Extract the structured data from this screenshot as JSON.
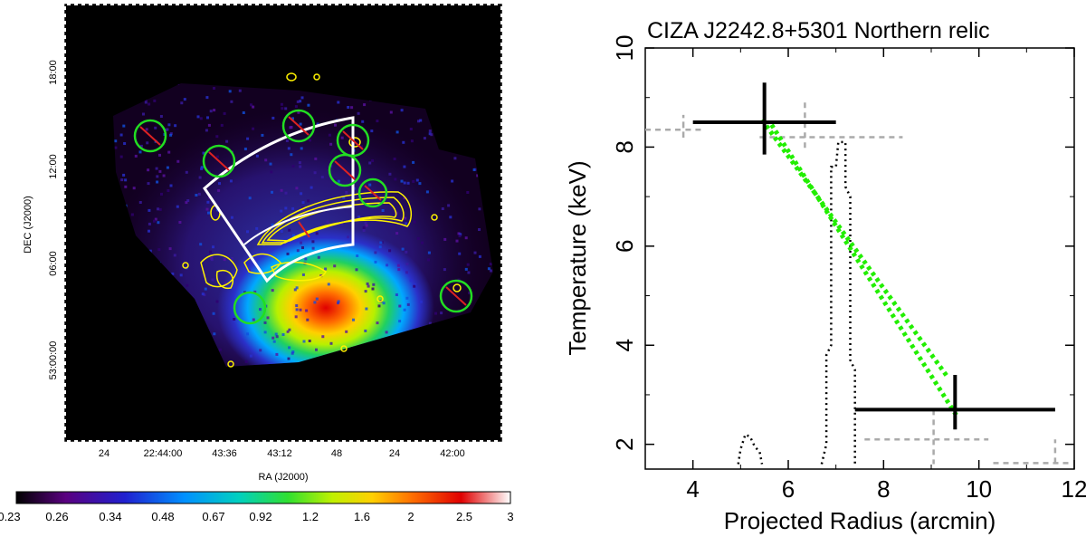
{
  "chart_data": [
    {
      "type": "heatmap",
      "description_label": "X-ray image with radio contours",
      "x_axis": {
        "label": "RA (J2000)",
        "ticks": [
          "24",
          "22:44:00",
          "43:36",
          "43:12",
          "48",
          "24",
          "42:00"
        ]
      },
      "y_axis": {
        "label": "DEC (J2000)",
        "ticks": [
          "18:00",
          "12:00",
          "06:00",
          "53:00:00"
        ]
      },
      "colorbar": {
        "ticks": [
          "0.23",
          "0.26",
          "0.34",
          "0.48",
          "0.67",
          "0.92",
          "1.2",
          "1.6",
          "2",
          "2.5",
          "3"
        ],
        "colors": [
          "#000000",
          "#5a0080",
          "#2020d0",
          "#0090ff",
          "#00d0c0",
          "#30e030",
          "#c0f000",
          "#ffd000",
          "#ff7000",
          "#e00000",
          "#ffffff"
        ]
      },
      "contour_color": "#fff200",
      "region_circle_color": "#22dd22",
      "region_slash_color": "#dd2222",
      "sector_color": "#ffffff"
    },
    {
      "type": "line",
      "title": "CIZA J2242.8+5301 Northern relic",
      "xlabel": "Projected Radius (arcmin)",
      "ylabel": "Temperature (keV)",
      "xlim": [
        3,
        12
      ],
      "ylim": [
        1.5,
        10
      ],
      "xticks": [
        4,
        6,
        8,
        10,
        12
      ],
      "yticks": [
        2,
        4,
        6,
        8,
        10
      ],
      "xtick_labels": [
        "4",
        "6",
        "8",
        "10",
        "12"
      ],
      "ytick_labels": [
        "2",
        "4",
        "6",
        "8",
        "10"
      ],
      "measurements": [
        {
          "name": "inner bin",
          "x": 5.5,
          "x_err": [
            4.0,
            7.0
          ],
          "y": 8.5,
          "y_err": [
            7.85,
            9.3
          ],
          "color": "#000000"
        },
        {
          "name": "outer bin",
          "x": 9.5,
          "x_err": [
            7.4,
            11.6
          ],
          "y": 2.7,
          "y_err": [
            2.3,
            3.4
          ],
          "color": "#000000"
        }
      ],
      "grey_dashed_steps": [
        [
          [
            3.0,
            8.35
          ],
          [
            3.8,
            8.35
          ],
          [
            3.8,
            8.65
          ],
          [
            3.8,
            8.15
          ],
          [
            3.8,
            8.35
          ],
          [
            4.2,
            8.35
          ]
        ],
        [
          [
            5.4,
            8.2
          ],
          [
            8.4,
            8.2
          ]
        ],
        [
          [
            6.35,
            8.9
          ],
          [
            6.35,
            8.2
          ],
          [
            6.35,
            7.9
          ]
        ],
        [
          [
            7.6,
            2.1
          ],
          [
            10.2,
            2.1
          ]
        ],
        [
          [
            9.05,
            2.7
          ],
          [
            9.05,
            1.6
          ]
        ],
        [
          [
            10.3,
            1.62
          ],
          [
            11.9,
            1.62
          ]
        ],
        [
          [
            11.6,
            1.62
          ],
          [
            11.6,
            2.1
          ]
        ]
      ],
      "black_dotted_profile": [
        [
          [
            4.95,
            1.6
          ],
          [
            5.0,
            1.9
          ],
          [
            5.1,
            2.2
          ],
          [
            5.2,
            2.15
          ],
          [
            5.3,
            1.95
          ],
          [
            5.4,
            1.85
          ],
          [
            5.45,
            1.6
          ]
        ],
        [
          [
            6.7,
            1.6
          ],
          [
            6.8,
            2.0
          ],
          [
            6.8,
            3.8
          ],
          [
            6.9,
            4.0
          ],
          [
            6.9,
            7.6
          ],
          [
            7.0,
            7.6
          ],
          [
            7.05,
            8.1
          ],
          [
            7.2,
            8.1
          ],
          [
            7.2,
            7.2
          ],
          [
            7.3,
            7.0
          ],
          [
            7.3,
            3.7
          ],
          [
            7.4,
            3.5
          ],
          [
            7.4,
            1.6
          ]
        ]
      ],
      "green_dotted_lines": [
        [
          [
            5.45,
            8.55
          ],
          [
            9.35,
            3.35
          ]
        ],
        [
          [
            5.65,
            8.45
          ],
          [
            9.55,
            2.55
          ]
        ]
      ],
      "green_color": "#22ee00",
      "grey_color": "#aaaaaa"
    }
  ]
}
